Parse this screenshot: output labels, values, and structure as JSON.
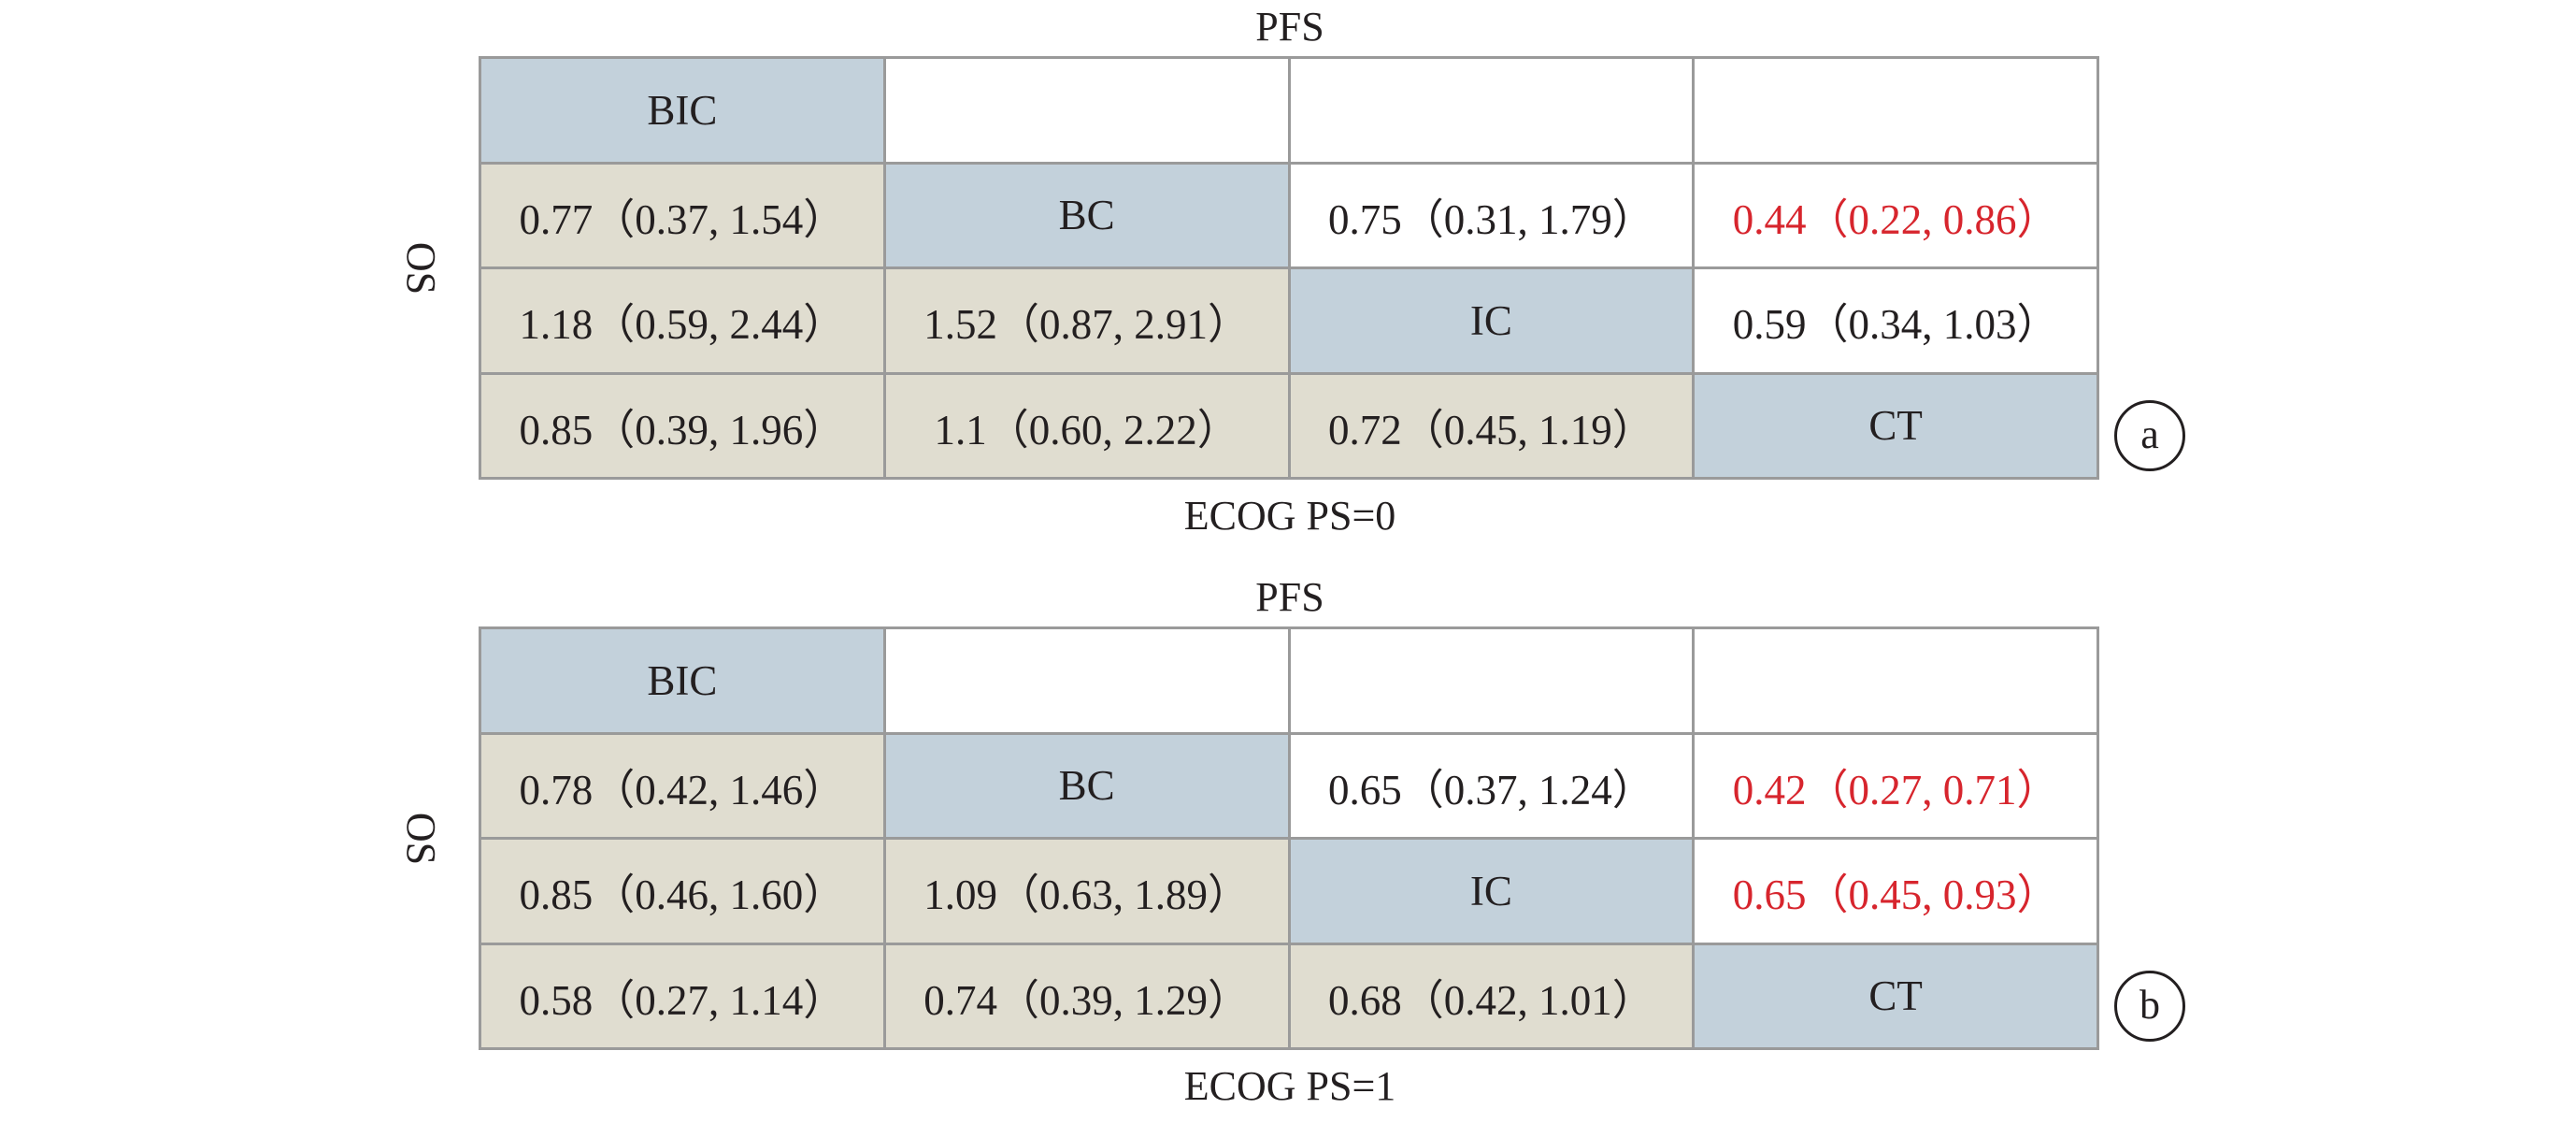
{
  "panels": [
    {
      "pfs_title": "PFS",
      "os_label": "OS",
      "ecog_label": "ECOG PS=0",
      "badge": "a",
      "rows": [
        [
          "BIC",
          "",
          "",
          ""
        ],
        [
          "0.77（0.37, 1.54）",
          "BC",
          "0.75（0.31, 1.79）",
          "0.44（0.22, 0.86）"
        ],
        [
          "1.18（0.59, 2.44）",
          "1.52（0.87, 2.91）",
          "IC",
          "0.59（0.34, 1.03）"
        ],
        [
          "0.85（0.39, 1.96）",
          "1.1（0.60, 2.22）",
          "0.72（0.45, 1.19）",
          "CT"
        ]
      ],
      "significant_cells": [
        "1-3"
      ]
    },
    {
      "pfs_title": "PFS",
      "os_label": "OS",
      "ecog_label": "ECOG PS=1",
      "badge": "b",
      "rows": [
        [
          "BIC",
          "",
          "",
          ""
        ],
        [
          "0.78（0.42, 1.46）",
          "BC",
          "0.65（0.37, 1.24）",
          "0.42（0.27, 0.71）"
        ],
        [
          "0.85（0.46, 1.60）",
          "1.09（0.63, 1.89）",
          "IC",
          "0.65（0.45, 0.93）"
        ],
        [
          "0.58（0.27, 1.14）",
          "0.74（0.39, 1.29）",
          "0.68（0.42, 1.01）",
          "CT"
        ]
      ],
      "significant_cells": [
        "1-3",
        "2-3"
      ]
    }
  ],
  "colors": {
    "diagonal": "#c3d1db",
    "lower_triangle": "#e0ddd0",
    "upper_triangle": "#ffffff",
    "significant_text": "#d7252d",
    "grid_lines": "#9a9a9a",
    "text": "#231f20"
  }
}
